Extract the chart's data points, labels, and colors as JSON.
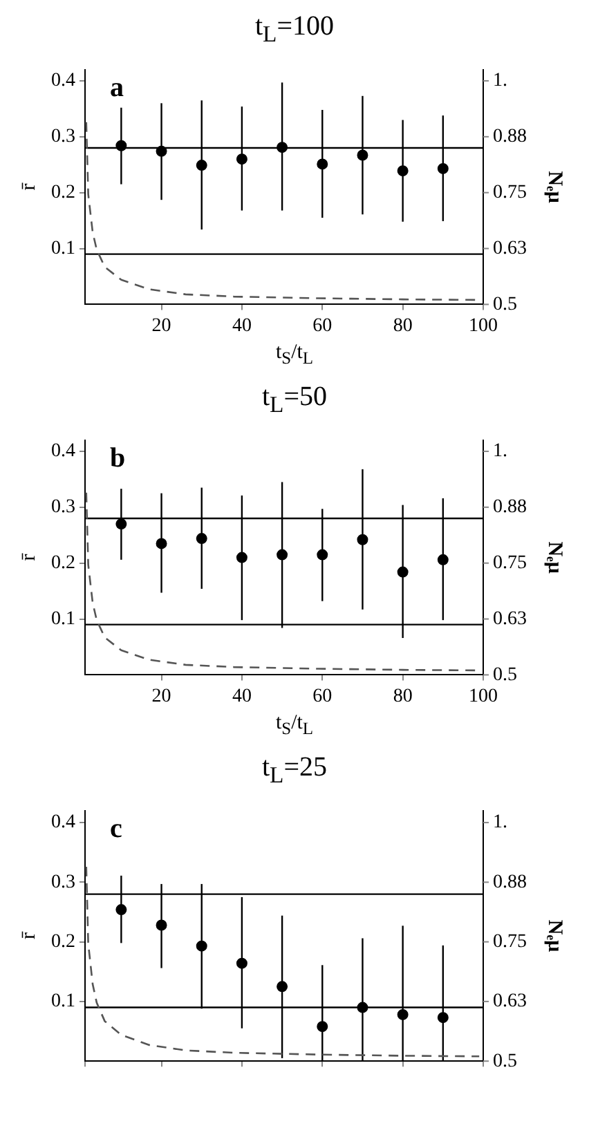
{
  "chart_data": [
    {
      "type": "scatter",
      "title": "t$_{L}$=100",
      "xlabel": "t$_{S}$/t$_{L}$",
      "ylabel": "r̄",
      "y2label": "Nₑμ",
      "annotations": [
        "a"
      ],
      "xlim": [
        1,
        100
      ],
      "xticks": [
        20,
        40,
        60,
        80,
        100
      ],
      "ylim": [
        0,
        0.42
      ],
      "yticks": [
        0.1,
        0.2,
        0.3,
        0.4
      ],
      "y2lim": [
        0.5,
        1.025
      ],
      "y2ticks": [
        {
          "value": 0.5,
          "label": "0.5"
        },
        {
          "value": 0.625,
          "label": "0.63"
        },
        {
          "value": 0.75,
          "label": "0.75"
        },
        {
          "value": 0.875,
          "label": "0.88"
        },
        {
          "value": 1,
          "label": "1."
        }
      ],
      "marker": "circle",
      "legend": false,
      "grid": false,
      "ref_lines": [
        {
          "axis": "y",
          "value": 0.28,
          "color": "#000000"
        },
        {
          "axis": "y",
          "value": 0.09,
          "color": "#000000"
        }
      ],
      "series": [
        {
          "type": "scatter",
          "color": "#000000",
          "x": [
            10,
            20,
            30,
            40,
            50,
            60,
            70,
            80,
            90
          ],
          "values": [
            0.284,
            0.274,
            0.249,
            0.26,
            0.281,
            0.251,
            0.267,
            0.239,
            0.243
          ],
          "errors": [
            [
              0.215,
              0.352
            ],
            [
              0.187,
              0.36
            ],
            [
              0.134,
              0.365
            ],
            [
              0.168,
              0.354
            ],
            [
              0.168,
              0.397
            ],
            [
              0.155,
              0.348
            ],
            [
              0.161,
              0.373
            ],
            [
              0.148,
              0.33
            ],
            [
              0.149,
              0.338
            ]
          ]
        },
        {
          "type": "line",
          "color": "#555555",
          "marker": "none",
          "line_style": "dashed",
          "x": [
            1.3,
            1.8,
            2.9,
            3.9,
            5.9,
            10,
            17,
            26,
            38,
            59,
            80,
            99
          ],
          "values": [
            0.326,
            0.197,
            0.129,
            0.098,
            0.067,
            0.044,
            0.027,
            0.018,
            0.014,
            0.011,
            0.009,
            0.008
          ]
        }
      ]
    },
    {
      "type": "scatter",
      "title": "t$_{L}$=50",
      "xlabel": "t$_{S}$/t$_{L}$",
      "ylabel": "r̄",
      "y2label": "Nₑμ",
      "annotations": [
        "b"
      ],
      "xlim": [
        1,
        100
      ],
      "xticks": [
        20,
        40,
        60,
        80,
        100
      ],
      "ylim": [
        0,
        0.42
      ],
      "yticks": [
        0.1,
        0.2,
        0.3,
        0.4
      ],
      "y2lim": [
        0.5,
        1.025
      ],
      "y2ticks": [
        {
          "value": 0.5,
          "label": "0.5"
        },
        {
          "value": 0.625,
          "label": "0.63"
        },
        {
          "value": 0.75,
          "label": "0.75"
        },
        {
          "value": 0.875,
          "label": "0.88"
        },
        {
          "value": 1,
          "label": "1."
        }
      ],
      "marker": "circle",
      "legend": false,
      "grid": false,
      "ref_lines": [
        {
          "axis": "y",
          "value": 0.28,
          "color": "#000000"
        },
        {
          "axis": "y",
          "value": 0.09,
          "color": "#000000"
        }
      ],
      "series": [
        {
          "type": "scatter",
          "color": "#000000",
          "x": [
            10,
            20,
            30,
            40,
            50,
            60,
            70,
            80,
            90
          ],
          "values": [
            0.27,
            0.235,
            0.244,
            0.21,
            0.215,
            0.215,
            0.242,
            0.184,
            0.206
          ],
          "errors": [
            [
              0.206,
              0.333
            ],
            [
              0.147,
              0.325
            ],
            [
              0.154,
              0.335
            ],
            [
              0.098,
              0.321
            ],
            [
              0.084,
              0.345
            ],
            [
              0.132,
              0.297
            ],
            [
              0.117,
              0.368
            ],
            [
              0.066,
              0.304
            ],
            [
              0.098,
              0.316
            ]
          ]
        },
        {
          "type": "line",
          "color": "#555555",
          "marker": "none",
          "line_style": "dashed",
          "x": [
            1.3,
            1.8,
            2.9,
            3.9,
            5.9,
            10,
            17,
            26,
            38,
            59,
            80,
            99
          ],
          "values": [
            0.326,
            0.197,
            0.129,
            0.098,
            0.067,
            0.044,
            0.027,
            0.018,
            0.014,
            0.011,
            0.009,
            0.008
          ]
        }
      ]
    },
    {
      "type": "scatter",
      "title": "t$_{L}$=25",
      "ylabel": "r̄",
      "y2label": "Nₑμ",
      "annotations": [
        "c"
      ],
      "xlim": [
        1,
        100
      ],
      "ylim": [
        0,
        0.42
      ],
      "yticks": [
        0.1,
        0.2,
        0.3,
        0.4
      ],
      "y2lim": [
        0.5,
        1.025
      ],
      "y2ticks": [
        {
          "value": 0.5,
          "label": "0.5"
        },
        {
          "value": 0.625,
          "label": "0.63"
        },
        {
          "value": 0.75,
          "label": "0.75"
        },
        {
          "value": 0.875,
          "label": "0.88"
        },
        {
          "value": 1,
          "label": "1."
        }
      ],
      "tick_labels": "y",
      "marker": "circle",
      "legend": false,
      "grid": false,
      "ref_lines": [
        {
          "axis": "y",
          "value": 0.28,
          "color": "#000000"
        },
        {
          "axis": "y",
          "value": 0.09,
          "color": "#000000"
        }
      ],
      "series": [
        {
          "type": "scatter",
          "color": "#000000",
          "x": [
            10,
            20,
            30,
            40,
            50,
            60,
            70,
            80,
            90
          ],
          "values": [
            0.254,
            0.228,
            0.193,
            0.164,
            0.125,
            0.058,
            0.09,
            0.078,
            0.073
          ],
          "errors": [
            [
              0.198,
              0.311
            ],
            [
              0.156,
              0.297
            ],
            [
              0.088,
              0.297
            ],
            [
              0.055,
              0.275
            ],
            [
              0.005,
              0.244
            ],
            [
              0,
              0.161
            ],
            [
              0,
              0.206
            ],
            [
              0,
              0.227
            ],
            [
              0,
              0.194
            ]
          ]
        },
        {
          "type": "line",
          "color": "#555555",
          "marker": "none",
          "line_style": "dashed",
          "x": [
            1.3,
            1.8,
            2.9,
            3.9,
            5.9,
            10,
            17,
            26,
            38,
            59,
            80,
            99
          ],
          "values": [
            0.326,
            0.197,
            0.129,
            0.098,
            0.067,
            0.044,
            0.027,
            0.018,
            0.014,
            0.011,
            0.009,
            0.008
          ]
        }
      ]
    }
  ]
}
